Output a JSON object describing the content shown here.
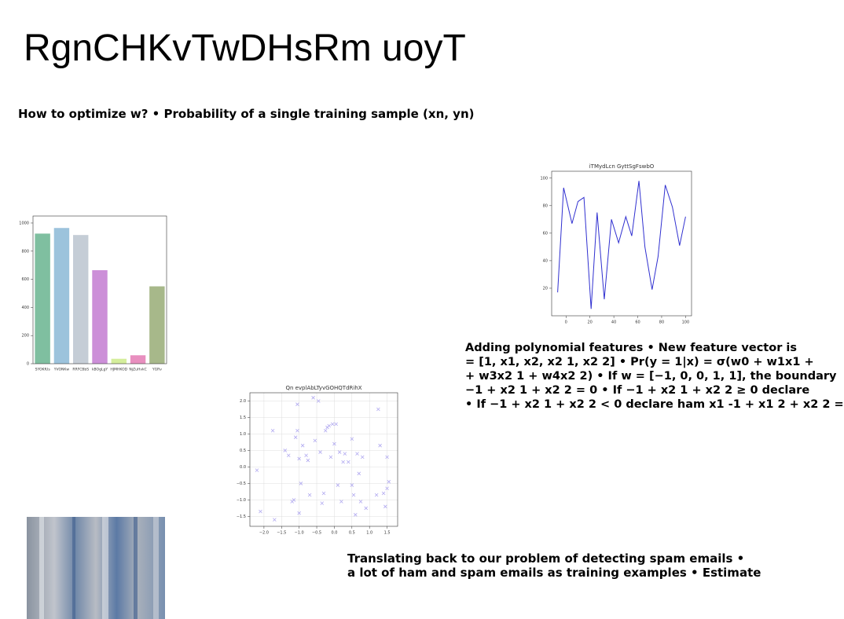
{
  "title": "RgnCHKvTwDHsRm uoyT",
  "subtitle": "How to optimize w? • Probability of a single training sample (xn, yn)",
  "paragraph": [
    "Adding polynomial features • New feature vector is",
    "= [1, x1, x2, x2 1, x2 2] • Pr(y = 1|x) = σ(w0 + w1x1 +",
    "+ w3x2 1 + w4x2 2) • If w = [−1, 0, 0, 1, 1], the boundary",
    "−1 + x2 1 + x2 2 = 0 • If −1 + x2 1 + x2 2 ≥ 0 declare",
    "• If −1 + x2 1 + x2 2 < 0 declare ham x1 -1 + x1 2 + x2 2 ="
  ],
  "bottom_text": [
    "Translating back to our problem of detecting spam emails •",
    "a lot of ham and spam emails as training examples • Estimate"
  ],
  "chart_data": [
    {
      "type": "bar",
      "categories": [
        "SYOKfUs",
        "YVONKw",
        "RRFCBbS",
        "kBOgLgY",
        "HJMHKOD",
        "NjZuHvkC",
        "YGRv"
      ],
      "values": [
        925,
        965,
        915,
        665,
        35,
        60,
        550
      ],
      "colors": [
        "#7fbfa0",
        "#9cc3dc",
        "#c5cdd6",
        "#cc8fd8",
        "#d4ee9c",
        "#e88fbf",
        "#a7b88a"
      ],
      "ylim": [
        0,
        1050
      ],
      "yticks": [
        0,
        200,
        400,
        600,
        800,
        1000
      ]
    },
    {
      "type": "line",
      "title": "iTMydLcn GyttSgFswbO",
      "color": "#3030d0",
      "x": [
        -7,
        -2,
        5,
        10,
        15,
        21,
        26,
        32,
        38,
        44,
        50,
        55,
        61,
        66,
        72,
        77,
        83,
        89,
        95,
        100
      ],
      "values": [
        17,
        93,
        67,
        83,
        86,
        5,
        75,
        12,
        70,
        53,
        72,
        58,
        98,
        50,
        19,
        43,
        95,
        79,
        51,
        72
      ],
      "xlim": [
        -12,
        105
      ],
      "ylim": [
        0,
        105
      ],
      "xticks": [
        0,
        20,
        40,
        60,
        80,
        100
      ],
      "yticks": [
        20,
        40,
        60,
        80,
        100
      ]
    },
    {
      "type": "scatter",
      "title": "Qn evplAbLTyvGOHQTdRihX",
      "color": "#b0a8f0",
      "grid": true,
      "x": [
        -2.2,
        -2.1,
        -1.75,
        -1.7,
        -1.4,
        -1.3,
        -1.2,
        -1.15,
        -1.1,
        -1.05,
        -1.05,
        -1.0,
        -1.0,
        -0.95,
        -0.9,
        -0.8,
        -0.75,
        -0.7,
        -0.6,
        -0.55,
        -0.45,
        -0.4,
        -0.35,
        -0.3,
        -0.25,
        -0.2,
        -0.15,
        -0.1,
        -0.05,
        0.0,
        0.05,
        0.1,
        0.15,
        0.2,
        0.25,
        0.3,
        0.4,
        0.5,
        0.5,
        0.55,
        0.6,
        0.65,
        0.7,
        0.75,
        0.8,
        0.9,
        1.2,
        1.25,
        1.3,
        1.4,
        1.45,
        1.5,
        1.55,
        1.5
      ],
      "values": [
        -0.1,
        -1.35,
        1.1,
        -1.6,
        0.5,
        0.35,
        -1.05,
        -1.0,
        0.9,
        1.1,
        1.9,
        0.25,
        -1.4,
        -0.5,
        0.65,
        0.35,
        0.2,
        -0.85,
        2.1,
        0.8,
        2.0,
        0.45,
        -1.1,
        -0.8,
        1.1,
        1.2,
        1.25,
        0.3,
        1.3,
        0.7,
        1.3,
        -0.55,
        0.45,
        -1.05,
        0.15,
        0.4,
        0.15,
        0.85,
        -0.55,
        -0.85,
        -1.45,
        0.4,
        -0.2,
        -1.05,
        0.3,
        -1.25,
        -0.85,
        1.75,
        0.65,
        -0.8,
        -1.2,
        0.3,
        -0.45,
        -0.65
      ],
      "xlim": [
        -2.4,
        1.8
      ],
      "ylim": [
        -1.8,
        2.25
      ],
      "xticks": [
        {
          "value": -2,
          "label": "−2.0"
        },
        {
          "value": -1.5,
          "label": "−1.5"
        },
        {
          "value": -1,
          "label": "−1.0"
        },
        {
          "value": -0.5,
          "label": "−0.5"
        },
        {
          "value": 0,
          "label": "0.0"
        },
        0.5,
        {
          "value": 1,
          "label": "1.0"
        },
        1.5
      ],
      "yticks": [
        {
          "value": -1.5,
          "label": "−1.5"
        },
        {
          "value": -1,
          "label": "−1.0"
        },
        {
          "value": -0.5,
          "label": "−0.5"
        },
        {
          "value": 0,
          "label": "0.0"
        },
        0.5,
        {
          "value": 1,
          "label": "1.0"
        },
        1.5,
        {
          "value": 2,
          "label": "2.0"
        }
      ]
    }
  ]
}
